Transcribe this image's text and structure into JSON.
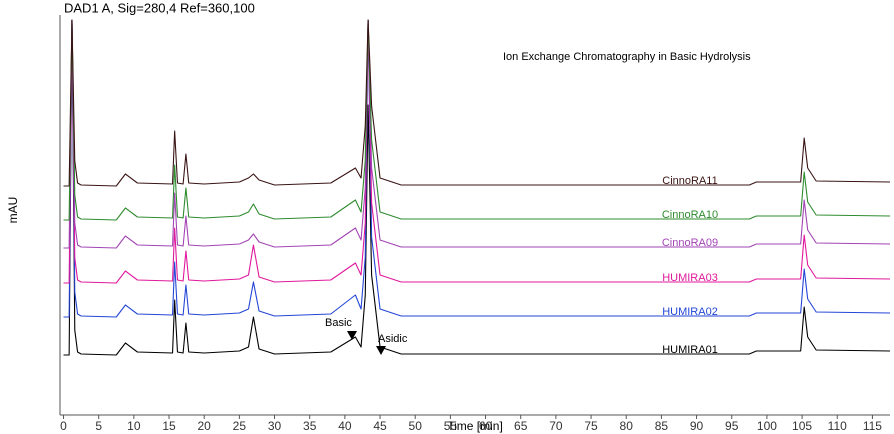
{
  "chart_data": {
    "type": "line",
    "title": "DAD1 A, Sig=280,4 Ref=360,100",
    "subtitle": "Ion Exchange Chromatography in Basic Hydrolysis",
    "x_label": "Time [min]",
    "y_label": "mAU",
    "annotations": [
      "Basic",
      "Asidic"
    ],
    "xlim": [
      -0.5,
      117.5
    ],
    "ylim": [
      0,
      400
    ],
    "xticks": [
      0,
      5,
      10,
      15,
      20,
      25,
      30,
      35,
      40,
      45,
      50,
      55,
      60,
      65,
      70,
      75,
      80,
      85,
      90,
      95,
      100,
      105,
      110,
      115
    ],
    "grid": false,
    "x": [
      0,
      0.8,
      1.2,
      1.6,
      2.0,
      2.5,
      7.5,
      8.8,
      10.5,
      15.5,
      15.8,
      16.2,
      17,
      17.4,
      17.8,
      20,
      25,
      26.3,
      27,
      27.8,
      30,
      38,
      41.5,
      42.3,
      42.9,
      43.3,
      43.8,
      45,
      48,
      97.5,
      98.5,
      104.8,
      105.3,
      105.8,
      107,
      117.5
    ],
    "series": [
      {
        "name": "HUMIRA01",
        "color": "#000000",
        "values": [
          60,
          60,
          395,
          85,
          63,
          61,
          60,
          72,
          63,
          62,
          115,
          63,
          62,
          92,
          63,
          62,
          64,
          68,
          98,
          66,
          61,
          63,
          78,
          68,
          120,
          310,
          140,
          68,
          61,
          61,
          64,
          64,
          108,
          78,
          65,
          64
        ]
      },
      {
        "name": "HUMIRA02",
        "color": "#2446d6",
        "values": [
          98,
          98,
          395,
          123,
          101,
          99,
          98,
          110,
          101,
          100,
          153,
          101,
          100,
          130,
          101,
          100,
          102,
          106,
          133,
          104,
          99,
          101,
          120,
          106,
          158,
          395,
          178,
          106,
          99,
          99,
          102,
          102,
          146,
          116,
          103,
          102
        ]
      },
      {
        "name": "HUMIRA03",
        "color": "#e0189c",
        "values": [
          132,
          132,
          395,
          157,
          135,
          133,
          132,
          144,
          135,
          134,
          187,
          135,
          134,
          164,
          135,
          134,
          136,
          140,
          170,
          138,
          133,
          135,
          152,
          140,
          192,
          395,
          212,
          140,
          133,
          133,
          136,
          136,
          180,
          150,
          137,
          136
        ]
      },
      {
        "name": "CinnoRA09",
        "color": "#a244b4",
        "values": [
          167,
          167,
          395,
          192,
          170,
          168,
          167,
          179,
          170,
          169,
          222,
          170,
          169,
          199,
          170,
          169,
          171,
          175,
          181,
          173,
          168,
          170,
          187,
          175,
          227,
          395,
          247,
          175,
          168,
          168,
          171,
          171,
          215,
          185,
          172,
          171
        ]
      },
      {
        "name": "CinnoRA10",
        "color": "#2e8b2e",
        "values": [
          195,
          195,
          395,
          220,
          198,
          196,
          195,
          207,
          198,
          197,
          250,
          198,
          197,
          227,
          198,
          197,
          199,
          203,
          211,
          201,
          196,
          198,
          215,
          203,
          255,
          395,
          275,
          203,
          196,
          196,
          199,
          199,
          243,
          213,
          200,
          199
        ]
      },
      {
        "name": "CinnoRA11",
        "color": "#3a1414",
        "values": [
          229,
          229,
          395,
          254,
          232,
          230,
          229,
          241,
          232,
          231,
          284,
          232,
          231,
          261,
          232,
          231,
          233,
          237,
          241,
          235,
          230,
          232,
          247,
          237,
          289,
          395,
          309,
          237,
          230,
          230,
          233,
          233,
          277,
          247,
          234,
          233
        ]
      }
    ]
  }
}
